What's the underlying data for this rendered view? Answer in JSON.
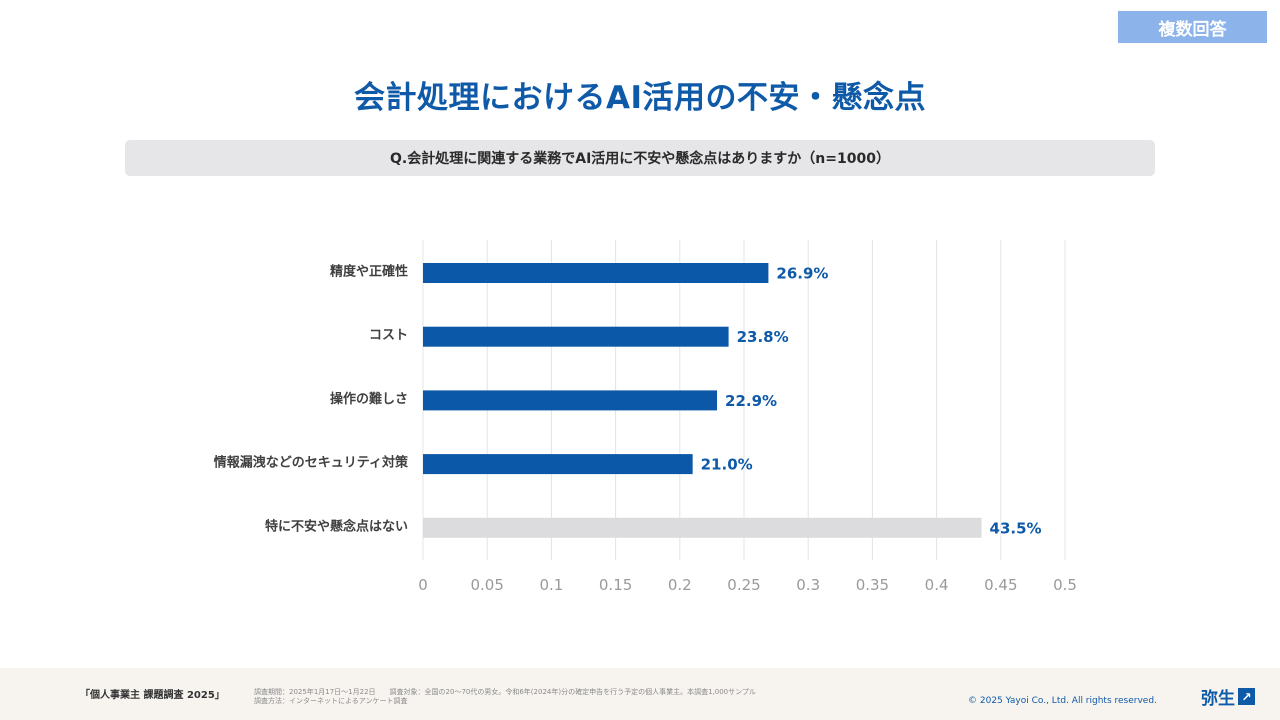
{
  "badge": "複数回答",
  "title": "会計処理におけるAI活用の不安・懸念点",
  "question": "Q.会計処理に関連する業務でAI活用に不安や懸念点はありますか（n=1000）",
  "chart_data": {
    "type": "bar",
    "orientation": "horizontal",
    "categories": [
      "精度や正確性",
      "コスト",
      "操作の難しさ",
      "情報漏洩などのセキュリティ対策",
      "特に不安や懸念点はない"
    ],
    "values": [
      0.269,
      0.238,
      0.229,
      0.21,
      0.435
    ],
    "data_labels": [
      "26.9%",
      "23.8%",
      "22.9%",
      "21.0%",
      "43.5%"
    ],
    "bar_colors": [
      "#0b58a8",
      "#0b58a8",
      "#0b58a8",
      "#0b58a8",
      "#dcdcdf"
    ],
    "xlim": [
      0,
      0.5
    ],
    "x_ticks": [
      "0",
      "0.05",
      "0.1",
      "0.15",
      "0.2",
      "0.25",
      "0.3",
      "0.35",
      "0.4",
      "0.45",
      "0.5"
    ],
    "grid": true,
    "title": "",
    "xlabel": "",
    "ylabel": ""
  },
  "footer": {
    "survey_name": "「個人事業主 課題調査 2025」",
    "period_line": "調査期間：2025年1月17日〜1月22日　　調査対象：全国の20〜70代の男女。令和6年(2024年)分の確定申告を行う予定の個人事業主。本調査1,000サンプル",
    "method_line": "調査方法：インターネットによるアンケート調査",
    "copyright": "© 2025 Yayoi Co., Ltd.  All rights reserved.",
    "logo_text": "弥生",
    "logo_mark": "↗"
  },
  "colors": {
    "accent": "#0f5aa8",
    "bar": "#0b58a8",
    "bar_muted": "#dcdcdf",
    "badge": "#8db4ea"
  }
}
